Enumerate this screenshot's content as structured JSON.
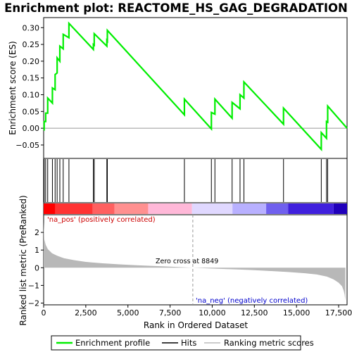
{
  "chart_data": {
    "type": "line",
    "title": "Enrichment plot: REACTOME_HS_GAG_DEGRADATION",
    "top_panel": {
      "ylabel": "Enrichment score (ES)",
      "ylim": [
        -0.09,
        0.33
      ],
      "yticks": [
        -0.05,
        0.0,
        0.05,
        0.1,
        0.15,
        0.2,
        0.25,
        0.3
      ],
      "ytick_labels": [
        "−0.05",
        "0.00",
        "0.05",
        "0.10",
        "0.15",
        "0.20",
        "0.25",
        "0.30"
      ],
      "series": [
        {
          "name": "Enrichment profile",
          "color": "#00ee00",
          "x": [
            0,
            30,
            30,
            120,
            120,
            240,
            240,
            520,
            520,
            680,
            680,
            800,
            800,
            960,
            960,
            1160,
            1160,
            1500,
            1500,
            2950,
            2950,
            3000,
            3000,
            3750,
            3750,
            3780,
            3780,
            8350,
            8350,
            9950,
            9950,
            10160,
            10160,
            11180,
            11180,
            11650,
            11650,
            11880,
            11880,
            14230,
            14230,
            16470,
            16470,
            16780,
            16780,
            16850,
            16850,
            18000
          ],
          "y": [
            -0.005,
            -0.005,
            0.02,
            0.02,
            0.045,
            0.045,
            0.09,
            0.075,
            0.12,
            0.115,
            0.16,
            0.165,
            0.21,
            0.2,
            0.245,
            0.237,
            0.28,
            0.27,
            0.313,
            0.235,
            0.25,
            0.248,
            0.282,
            0.245,
            0.262,
            0.26,
            0.292,
            0.04,
            0.087,
            -0.002,
            0.047,
            0.042,
            0.087,
            0.03,
            0.077,
            0.058,
            0.1,
            0.09,
            0.138,
            0.012,
            0.06,
            -0.063,
            -0.013,
            -0.03,
            0.02,
            0.018,
            0.066,
            0.0
          ]
        }
      ]
    },
    "hits": [
      30,
      120,
      240,
      520,
      680,
      800,
      960,
      1160,
      1500,
      2950,
      3000,
      3750,
      3780,
      8350,
      9950,
      10160,
      11180,
      11650,
      11880,
      14230,
      16470,
      16780,
      16850
    ],
    "rank_bar": {
      "colors": [
        "#ff0000",
        "#ff3333",
        "#ff6060",
        "#ff9090",
        "#ffb8d8",
        "#e0d8ff",
        "#b8b0ff",
        "#7060ee",
        "#4020dd",
        "#2000bb"
      ],
      "breaks": [
        0,
        700,
        2900,
        4200,
        6200,
        8800,
        11200,
        13200,
        14500,
        17200,
        18000
      ]
    },
    "bottom_panel": {
      "ylabel": "Ranked list metric (PreRanked)",
      "xlabel": "Rank in Ordered Dataset",
      "xlim": [
        0,
        18000
      ],
      "xticks": [
        0,
        2500,
        5000,
        7500,
        10000,
        12500,
        15000,
        17500
      ],
      "xtick_labels": [
        "0",
        "2,500",
        "5,000",
        "7,500",
        "10,000",
        "12,500",
        "15,000",
        "17,500"
      ],
      "ylim": [
        -2.1,
        3.0
      ],
      "yticks": [
        -2,
        -1,
        0,
        1,
        2
      ],
      "ytick_labels": [
        "−2",
        "−1",
        "0",
        "1",
        "2"
      ],
      "metric_curve": {
        "x": [
          0,
          40,
          120,
          250,
          500,
          800,
          1200,
          1800,
          2500,
          3500,
          4500,
          5500,
          6500,
          7500,
          8849,
          10000,
          11500,
          12500,
          13500,
          14500,
          15500,
          16200,
          16800,
          17200,
          17500,
          17700,
          17800,
          17850,
          17900
        ],
        "y": [
          2.6,
          1.6,
          1.3,
          1.05,
          0.82,
          0.68,
          0.54,
          0.43,
          0.33,
          0.25,
          0.19,
          0.14,
          0.1,
          0.06,
          0.0,
          -0.05,
          -0.1,
          -0.14,
          -0.19,
          -0.24,
          -0.31,
          -0.38,
          -0.5,
          -0.66,
          -0.85,
          -1.05,
          -1.3,
          -1.5,
          -1.85
        ]
      },
      "zero_cross_rank": 8849,
      "zero_cross_label": "Zero cross at 8849",
      "pos_label": "'na_pos' (positively correlated)",
      "neg_label": "'na_neg' (negatively correlated)"
    },
    "legend": {
      "entries": [
        {
          "label": "Enrichment profile",
          "color": "#00ee00"
        },
        {
          "label": "Hits",
          "color": "#000000"
        },
        {
          "label": "Ranking metric scores",
          "color": "#bbbbbb"
        }
      ]
    }
  }
}
